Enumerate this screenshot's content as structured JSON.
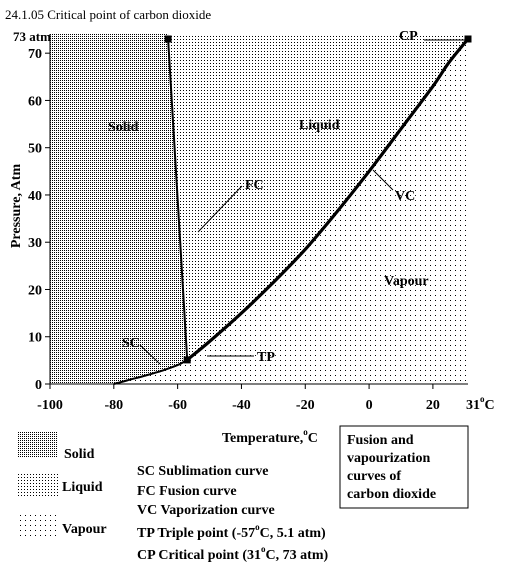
{
  "title": "24.1.05 Critical point of carbon dioxide",
  "colors": {
    "ink": "#000000",
    "background": "#ffffff"
  },
  "chart_data": {
    "type": "line",
    "xlabel": "Temperature,",
    "xlabel_unit_sup": "o",
    "xlabel_unit": "C",
    "ylabel": "Pressure, Atm",
    "xlim": [
      -100,
      31
    ],
    "ylim": [
      0,
      73
    ],
    "x_ticks": [
      -100,
      -80,
      -60,
      -40,
      -20,
      0,
      20
    ],
    "x_tick_labels": [
      "-100",
      "-80",
      "-60",
      "-40",
      "-20",
      "0",
      "20"
    ],
    "x_end_label": {
      "value": "31",
      "sup": "o",
      "unit": "C"
    },
    "y_ticks": [
      0,
      10,
      20,
      30,
      40,
      50,
      60,
      70
    ],
    "y_tick_labels": [
      "0",
      "10",
      "20",
      "30",
      "40",
      "50",
      "60",
      "70"
    ],
    "y_top_label": "73 atm",
    "regions": [
      {
        "name": "Solid",
        "pattern": "dense-dots"
      },
      {
        "name": "Liquid",
        "pattern": "medium-dots"
      },
      {
        "name": "Vapour",
        "pattern": "sparse-dots"
      }
    ],
    "series": [
      {
        "abbr": "SC",
        "x": [
          -80,
          -75,
          -70,
          -65,
          -60,
          -57
        ],
        "y": [
          0,
          0.9,
          1.8,
          2.8,
          4.0,
          5.1
        ]
      },
      {
        "abbr": "FC",
        "x": [
          -57,
          -63
        ],
        "y": [
          5.1,
          73
        ]
      },
      {
        "abbr": "VC",
        "x": [
          -57,
          -50,
          -40,
          -30,
          -20,
          -10,
          0,
          10,
          20,
          25,
          31
        ],
        "y": [
          5.1,
          9.0,
          15.0,
          21.5,
          28.5,
          36.5,
          45.0,
          54.0,
          63.0,
          68.0,
          73.0
        ]
      }
    ],
    "points": [
      {
        "abbr": "TP",
        "x": -57,
        "y": 5.1
      },
      {
        "abbr": "CP",
        "x": 31,
        "y": 73
      },
      {
        "abbr": "FC-end",
        "x": -63,
        "y": 73
      }
    ],
    "annotations": {
      "solid": "Solid",
      "liquid": "Liquid",
      "vapour": "Vapour",
      "fc": "FC",
      "vc": "VC",
      "sc": "SC",
      "tp": "TP",
      "cp": "CP"
    }
  },
  "info_box": {
    "lines": [
      "Fusion and",
      "vapourization",
      "curves of",
      "carbon dioxide"
    ]
  },
  "legend": {
    "swatches": [
      "Solid",
      "Liquid",
      "Vapour"
    ],
    "curves": [
      {
        "abbr": "SC",
        "text": "Sublimation curve"
      },
      {
        "abbr": "FC",
        "text": "Fusion curve"
      },
      {
        "abbr": "VC",
        "text": "Vaporization curve"
      }
    ],
    "tp": {
      "lead": "TP Triple point (-57",
      "sup": "o",
      "tail": "C, 5.1 atm)"
    },
    "cp": {
      "lead": "CP Critical point (31",
      "sup": "o",
      "tail": "C, 73 atm)"
    }
  }
}
